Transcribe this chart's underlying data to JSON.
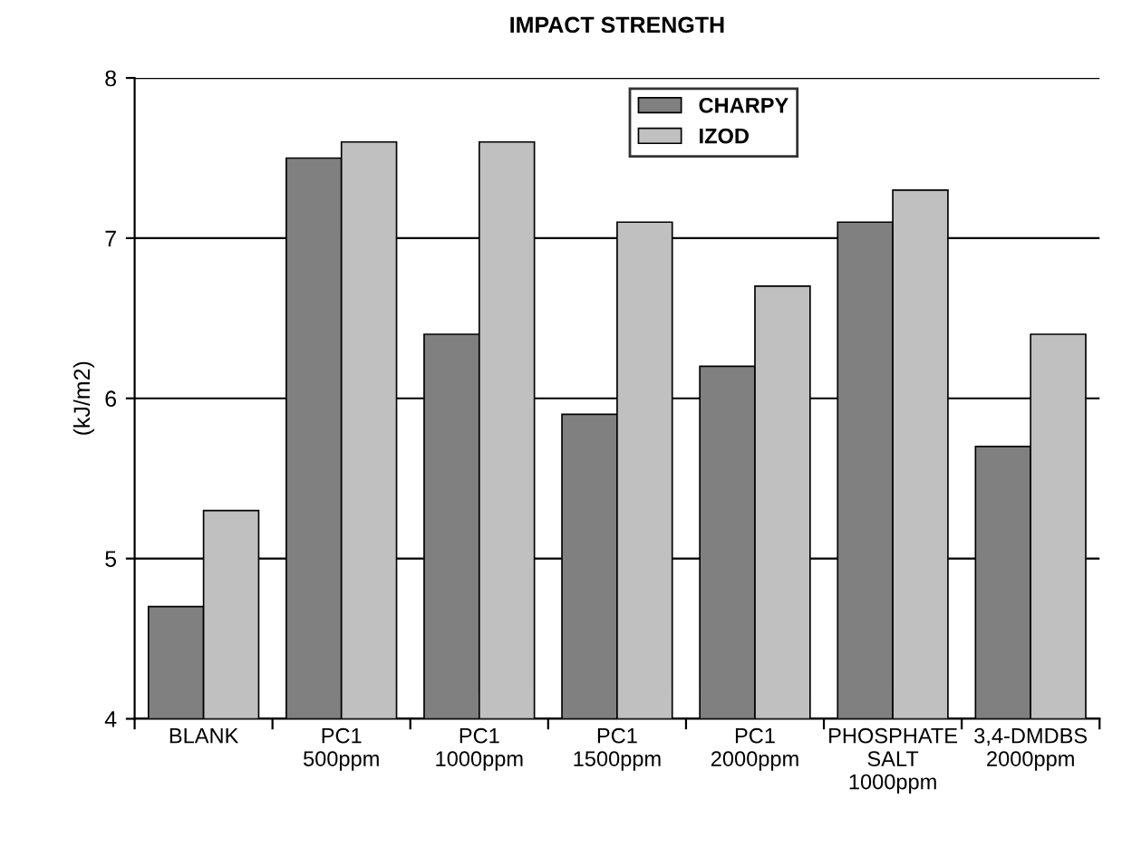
{
  "chart_data": {
    "type": "bar",
    "title": "IMPACT STRENGTH",
    "ylabel": "(kJ/m2)",
    "categories": [
      "BLANK",
      "PC1\n500ppm",
      "PC1\n1000ppm",
      "PC1\n1500ppm",
      "PC1\n2000ppm",
      "PHOSPHATE\nSALT\n1000ppm",
      "3,4-DMDBS\n2000ppm"
    ],
    "series": [
      {
        "name": "CHARPY",
        "color": "#808080",
        "values": [
          4.7,
          7.5,
          6.4,
          5.9,
          6.2,
          7.1,
          5.7
        ]
      },
      {
        "name": "IZOD",
        "color": "#c0c0c0",
        "values": [
          5.3,
          7.6,
          7.6,
          7.1,
          6.7,
          7.3,
          6.4
        ]
      }
    ],
    "ylim": [
      4,
      8
    ],
    "yticks": [
      4,
      5,
      6,
      7,
      8
    ],
    "grid": "y",
    "legend": "top"
  }
}
